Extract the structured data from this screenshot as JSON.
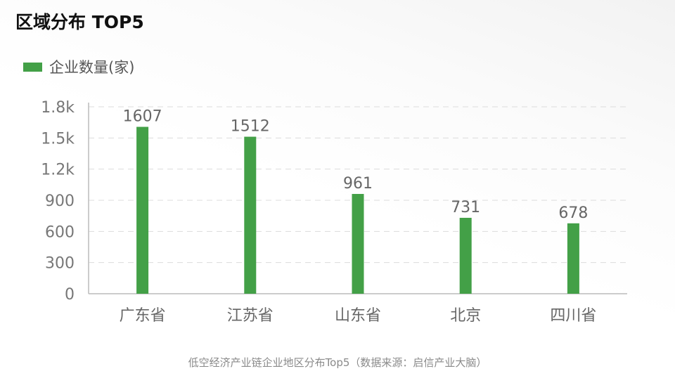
{
  "title": "区域分布 TOP5",
  "caption": "低空经济产业链企业地区分布Top5（数据来源：启信产业大脑）",
  "chart_data": {
    "type": "bar",
    "categories": [
      "广东省",
      "江苏省",
      "山东省",
      "北京",
      "四川省"
    ],
    "series": [
      {
        "name": "企业数量(家)",
        "values": [
          1607,
          1512,
          961,
          731,
          678
        ],
        "color": "#43a047"
      }
    ],
    "yticks": [
      0,
      300,
      600,
      900,
      1200,
      1500,
      1800
    ],
    "ytick_labels": [
      "0",
      "300",
      "600",
      "900",
      "1.2k",
      "1.5k",
      "1.8k"
    ],
    "ylim": [
      0,
      1800
    ],
    "grid": "dashed horizontal",
    "legend": "top-left",
    "data_labels": true
  }
}
